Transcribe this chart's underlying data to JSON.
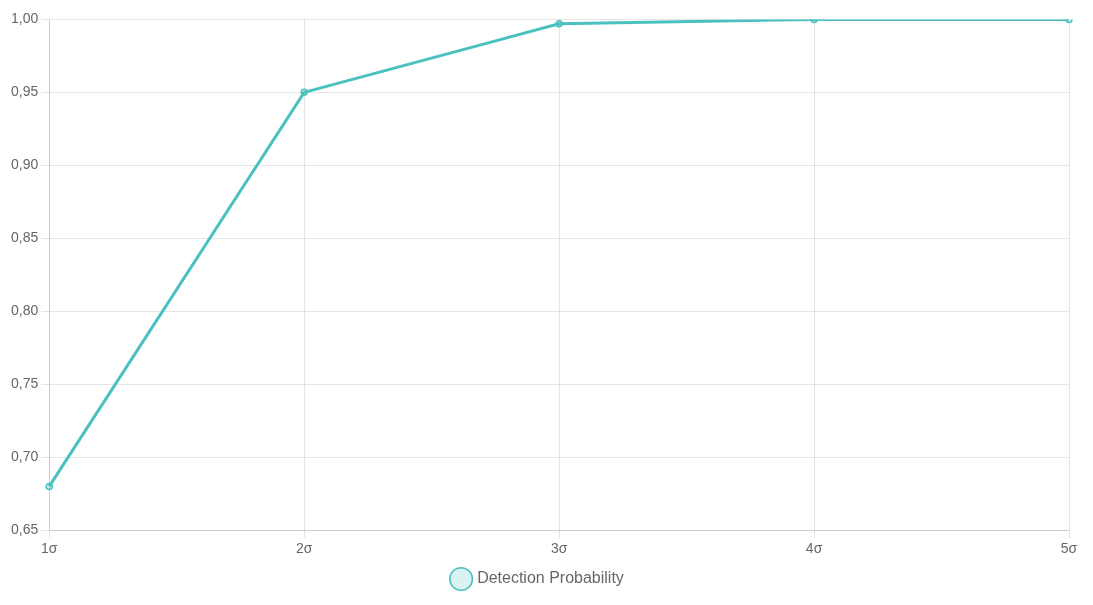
{
  "chart_data": {
    "type": "line",
    "categories": [
      "1σ",
      "2σ",
      "3σ",
      "4σ",
      "5σ"
    ],
    "series": [
      {
        "name": "Detection Probability",
        "color": "#4bc0c0",
        "values": [
          0.68,
          0.95,
          0.997,
          1.0,
          1.0
        ]
      }
    ],
    "ylim": [
      0.65,
      1.0
    ],
    "yticks": [
      {
        "value": 0.65,
        "label": "0,65"
      },
      {
        "value": 0.7,
        "label": "0,70"
      },
      {
        "value": 0.75,
        "label": "0,75"
      },
      {
        "value": 0.8,
        "label": "0,80"
      },
      {
        "value": 0.85,
        "label": "0,85"
      },
      {
        "value": 0.9,
        "label": "0,90"
      },
      {
        "value": 0.95,
        "label": "0,95"
      },
      {
        "value": 1.0,
        "label": "1,00"
      }
    ],
    "grid": true,
    "legend": "bottom",
    "marker": "circle",
    "line_style": "solid"
  }
}
